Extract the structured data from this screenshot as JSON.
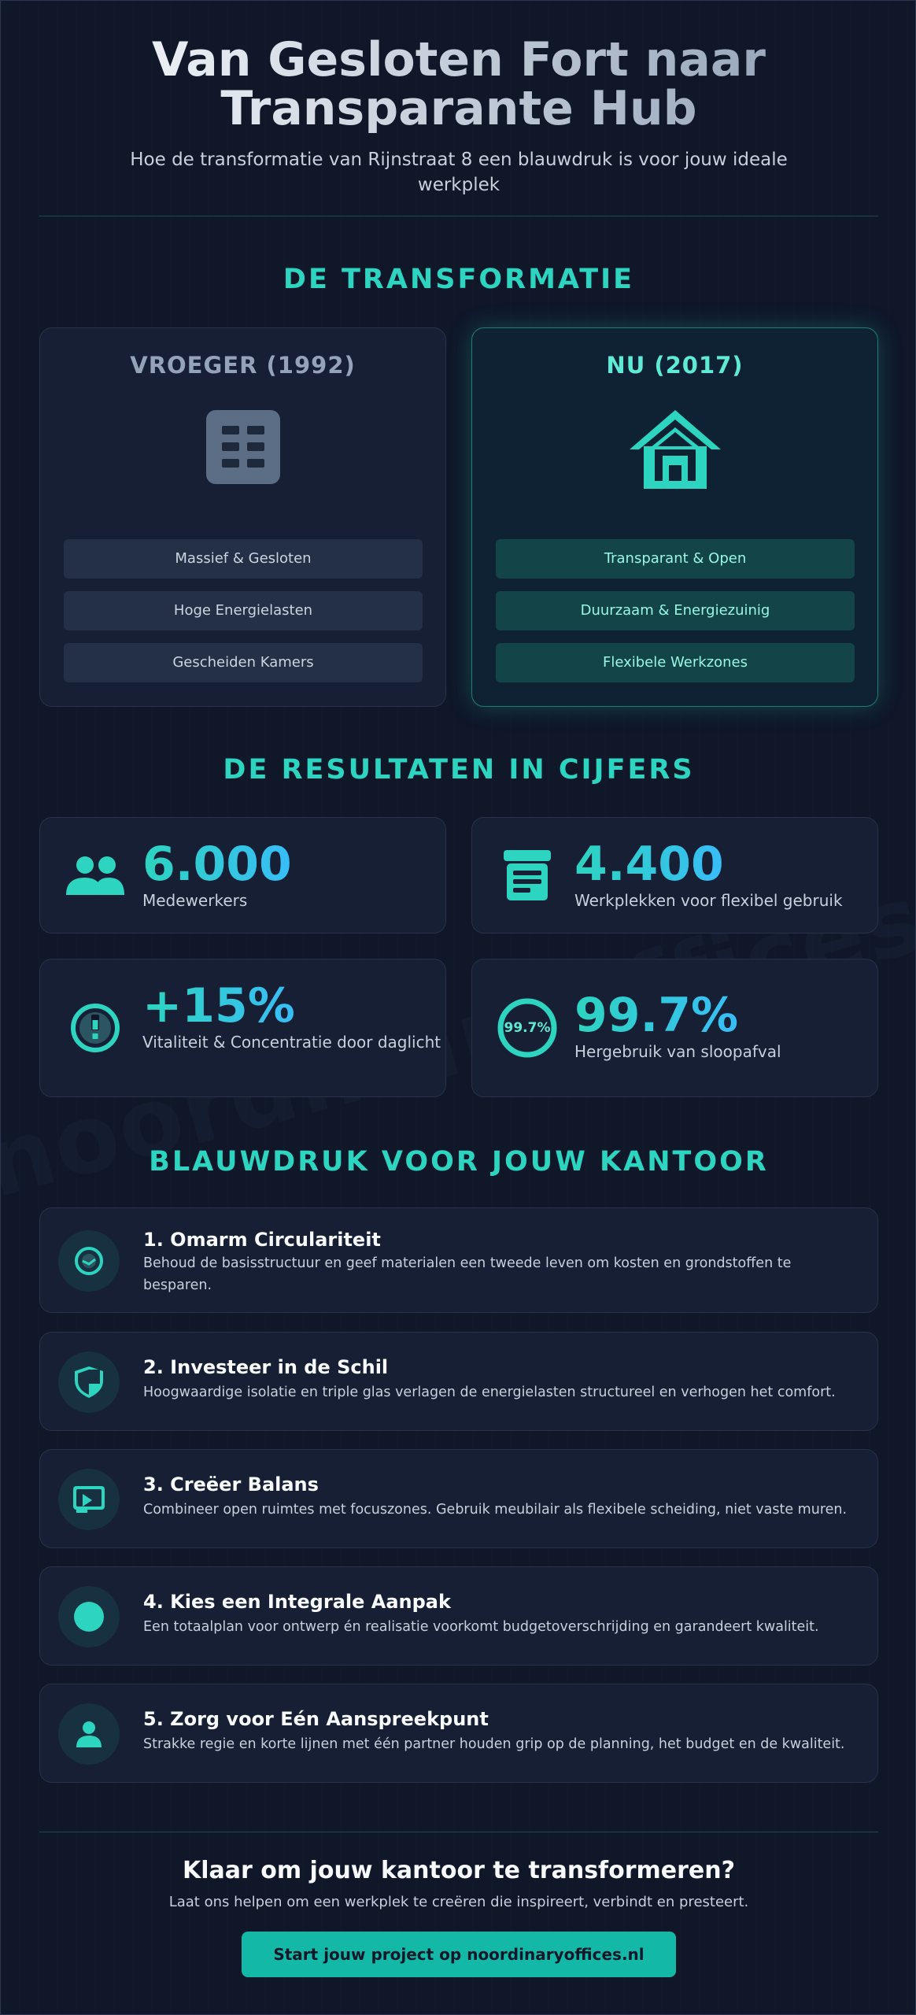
{
  "header": {
    "title": "Van Gesloten Fort naar Transparante Hub",
    "subtitle": "Hoe de transformatie van Rijnstraat 8 een blauwdruk is voor jouw ideale werkplek"
  },
  "watermark": "noordinaryoffices.nl",
  "transformation": {
    "section_title": "DE TRANSFORMATIE",
    "before": {
      "heading": "VROEGER (1992)",
      "icon": "building-icon",
      "items": [
        "Massief & Gesloten",
        "Hoge Energielasten",
        "Gescheiden Kamers"
      ]
    },
    "after": {
      "heading": "NU (2017)",
      "icon": "house-icon",
      "items": [
        "Transparant & Open",
        "Duurzaam & Energiezuinig",
        "Flexibele Werkzones"
      ]
    }
  },
  "results": {
    "section_title": "DE RESULTATEN IN CIJFERS",
    "stats": [
      {
        "value": "6.000",
        "label": "Medewerkers",
        "icon": "users-icon"
      },
      {
        "value": "4.400",
        "label": "Werkplekken voor flexibel gebruik",
        "icon": "archive-icon"
      },
      {
        "value": "+15%",
        "label": "Vitaliteit & Concentratie door daglicht",
        "icon": "lightbulb-icon"
      },
      {
        "value": "99.7%",
        "label": "Hergebruik van sloopafval",
        "icon": "recycle-ring-icon",
        "ring_text": "99.7%"
      }
    ]
  },
  "blueprint": {
    "section_title": "BLAUWDRUK VOOR JOUW KANTOOR",
    "steps": [
      {
        "title": "1. Omarm Circulariteit",
        "desc": "Behoud de basisstructuur en geef materialen een tweede leven om kosten en grondstoffen te besparen.",
        "icon": "recycle-icon"
      },
      {
        "title": "2. Investeer in de Schil",
        "desc": "Hoogwaardige isolatie en triple glas verlagen de energielasten structureel en verhogen het comfort.",
        "icon": "shield-icon"
      },
      {
        "title": "3. Creëer Balans",
        "desc": "Combineer open ruimtes met focuszones. Gebruik meubilair als flexibele scheiding, niet vaste muren.",
        "icon": "screen-icon"
      },
      {
        "title": "4. Kies een Integrale Aanpak",
        "desc": "Een totaalplan voor ontwerp én realisatie voorkomt budgetoverschrijding en garandeert kwaliteit.",
        "icon": "circle-icon"
      },
      {
        "title": "5. Zorg voor Eén Aanspreekpunt",
        "desc": "Strakke regie en korte lijnen met één partner houden grip op de planning, het budget en de kwaliteit.",
        "icon": "person-icon"
      }
    ]
  },
  "cta": {
    "title": "Klaar om jouw kantoor te transformeren?",
    "subtitle": "Laat ons helpen om een werkplek te creëren die inspireert, verbindt en presteert.",
    "button_label": "Start jouw project op noordinaryoffices.nl"
  },
  "colors": {
    "background": "#0f1729",
    "accent": "#2dd4bf",
    "accent_blue": "#38bdf8",
    "card": "#161f33"
  }
}
